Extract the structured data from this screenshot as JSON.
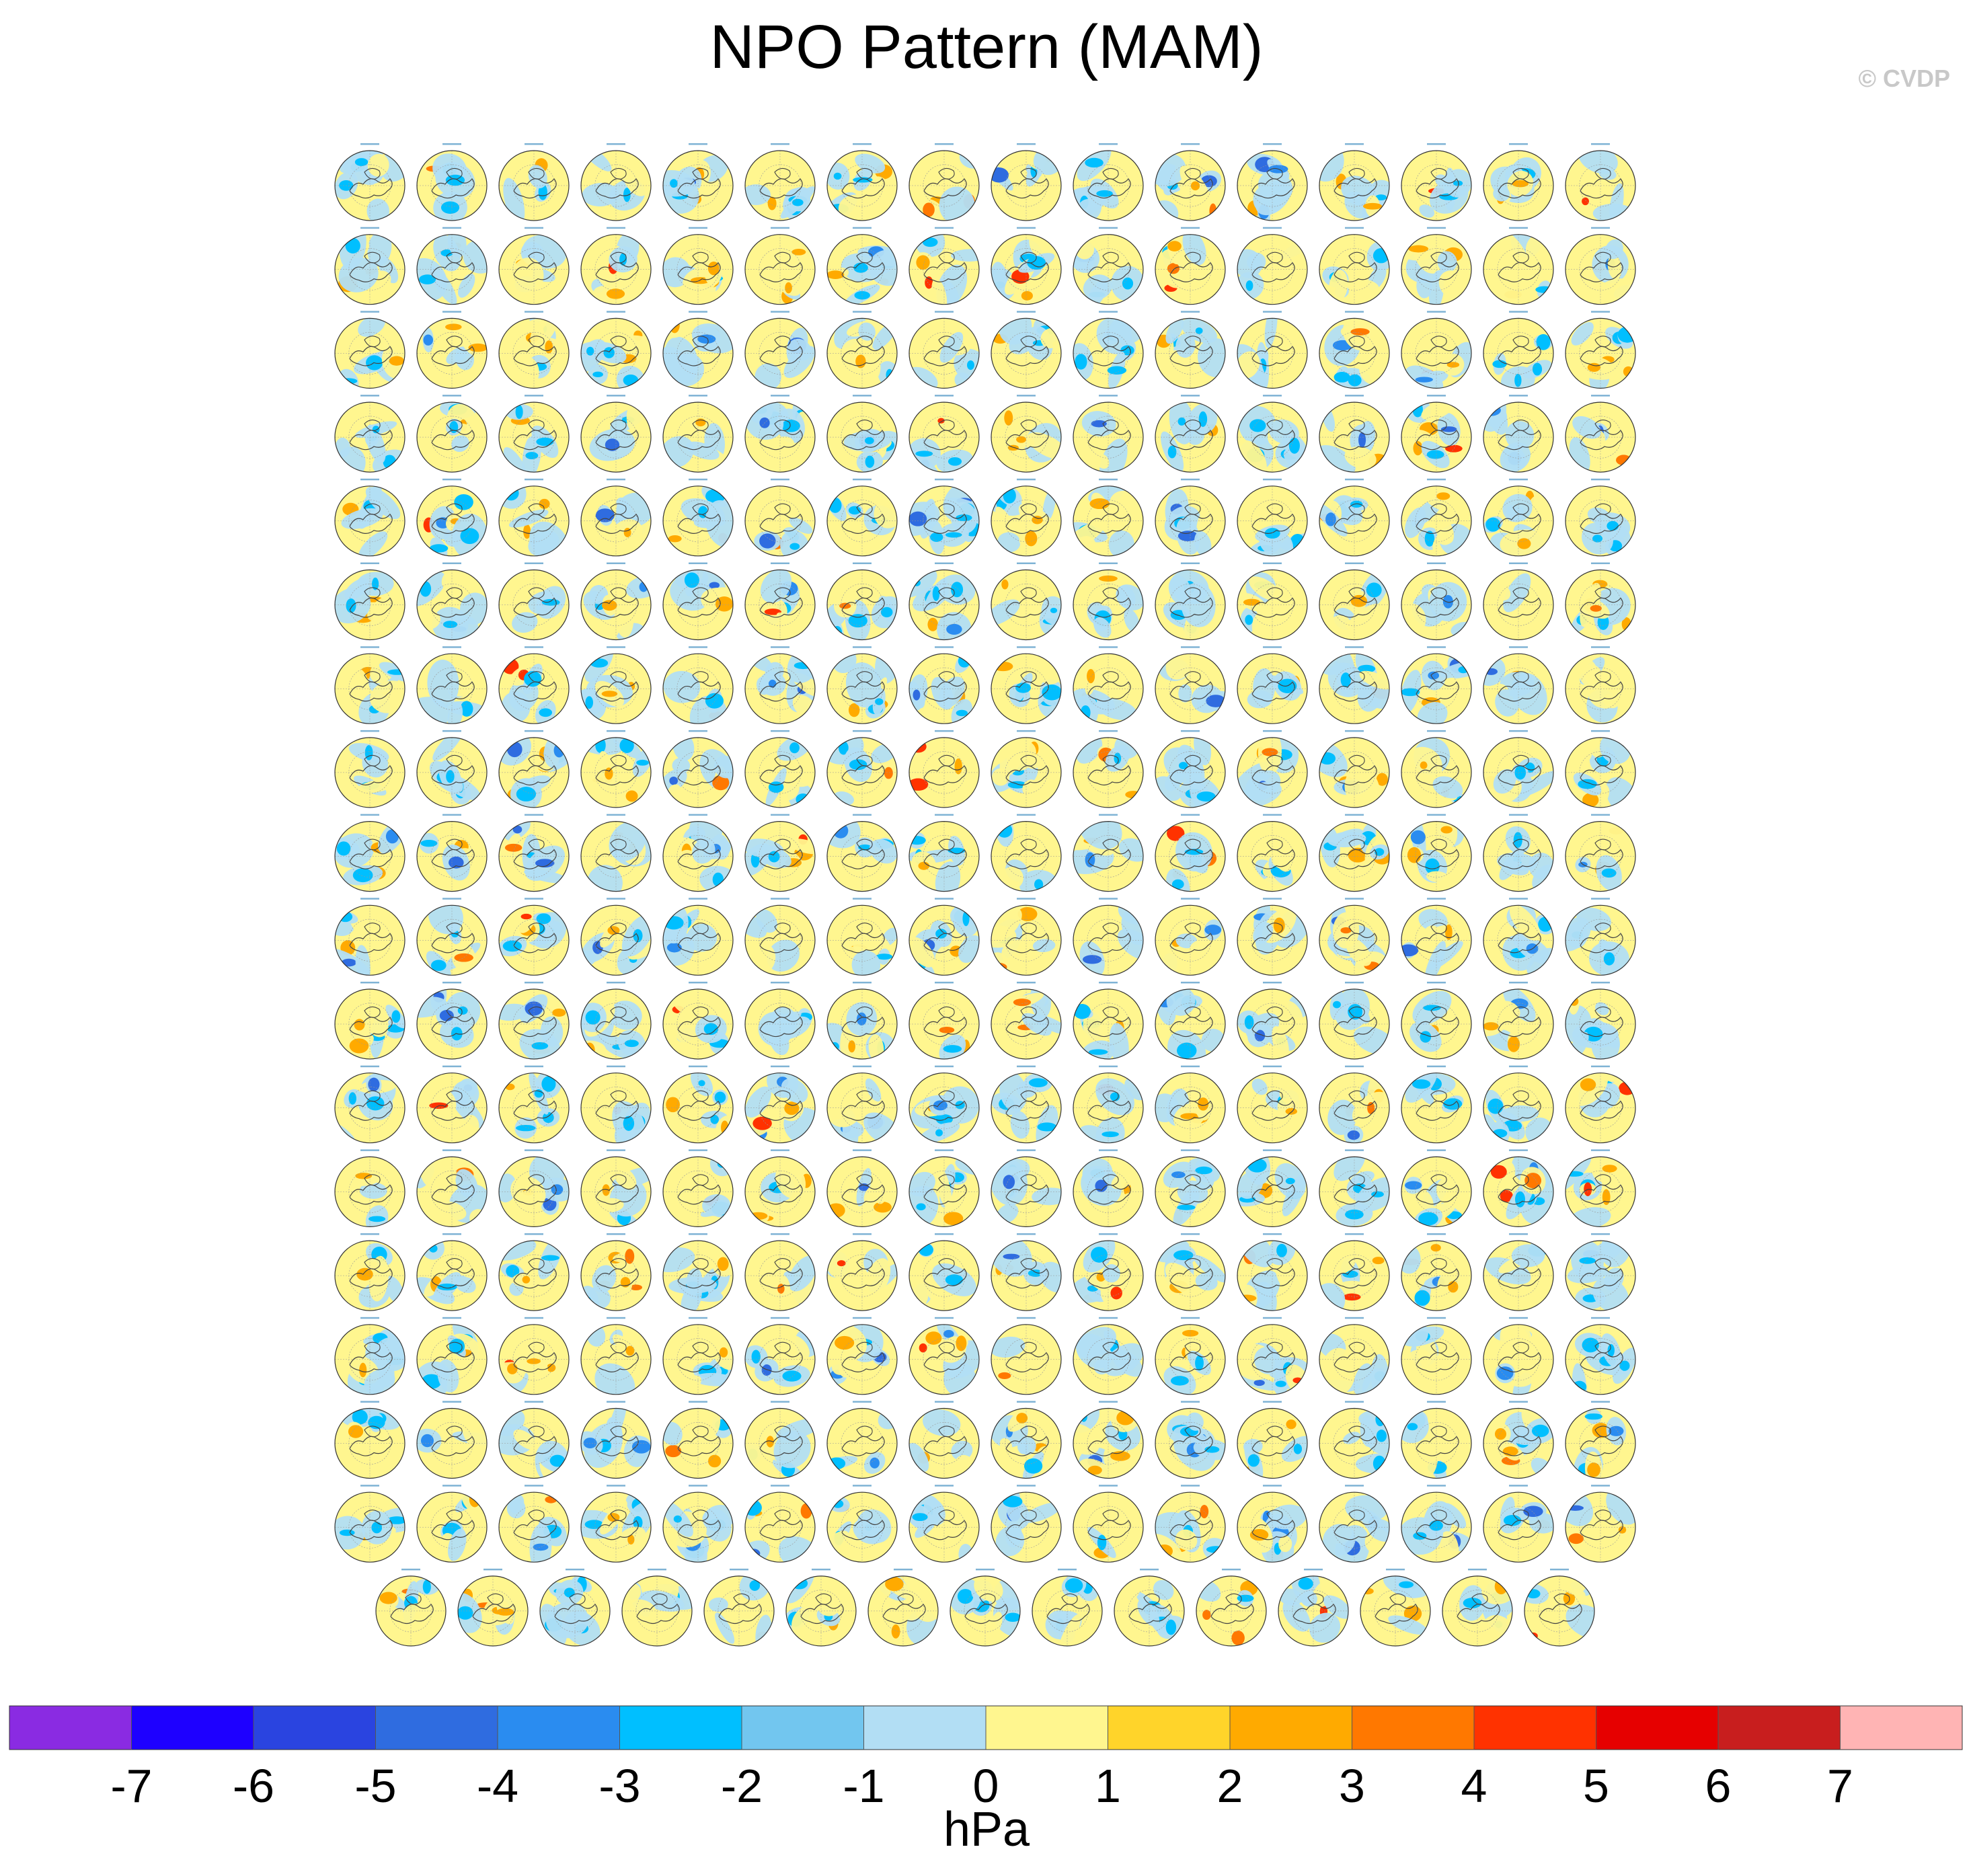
{
  "title": "NPO Pattern (MAM)",
  "copyright": "© CVDP",
  "colorbar": {
    "units": "hPa",
    "tick_labels": [
      "-7",
      "-6",
      "-5",
      "-4",
      "-3",
      "-2",
      "-1",
      "0",
      "1",
      "2",
      "3",
      "4",
      "5",
      "6",
      "7"
    ],
    "tick_values": [
      -7,
      -6,
      -5,
      -4,
      -3,
      -2,
      -1,
      0,
      1,
      2,
      3,
      4,
      5,
      6,
      7
    ],
    "colors": [
      "#8a2be2",
      "#1e00ff",
      "#2a44e0",
      "#2f6ce0",
      "#2a8cf0",
      "#00bfff",
      "#72c6ef",
      "#b2def4",
      "#fff68f",
      "#ffd42a",
      "#ffaa00",
      "#ff7800",
      "#ff3200",
      "#e60000",
      "#c81e1e",
      "#ffb4b4"
    ]
  },
  "chart_data": {
    "type": "heatmap",
    "title": "NPO Pattern (MAM)",
    "projection": "north polar stereographic",
    "panel_grid": {
      "full_rows": 17,
      "columns": 16,
      "last_row_panels": 15,
      "total_panels": 287
    },
    "value_range": [
      -7,
      7
    ],
    "units": "hPa"
  }
}
